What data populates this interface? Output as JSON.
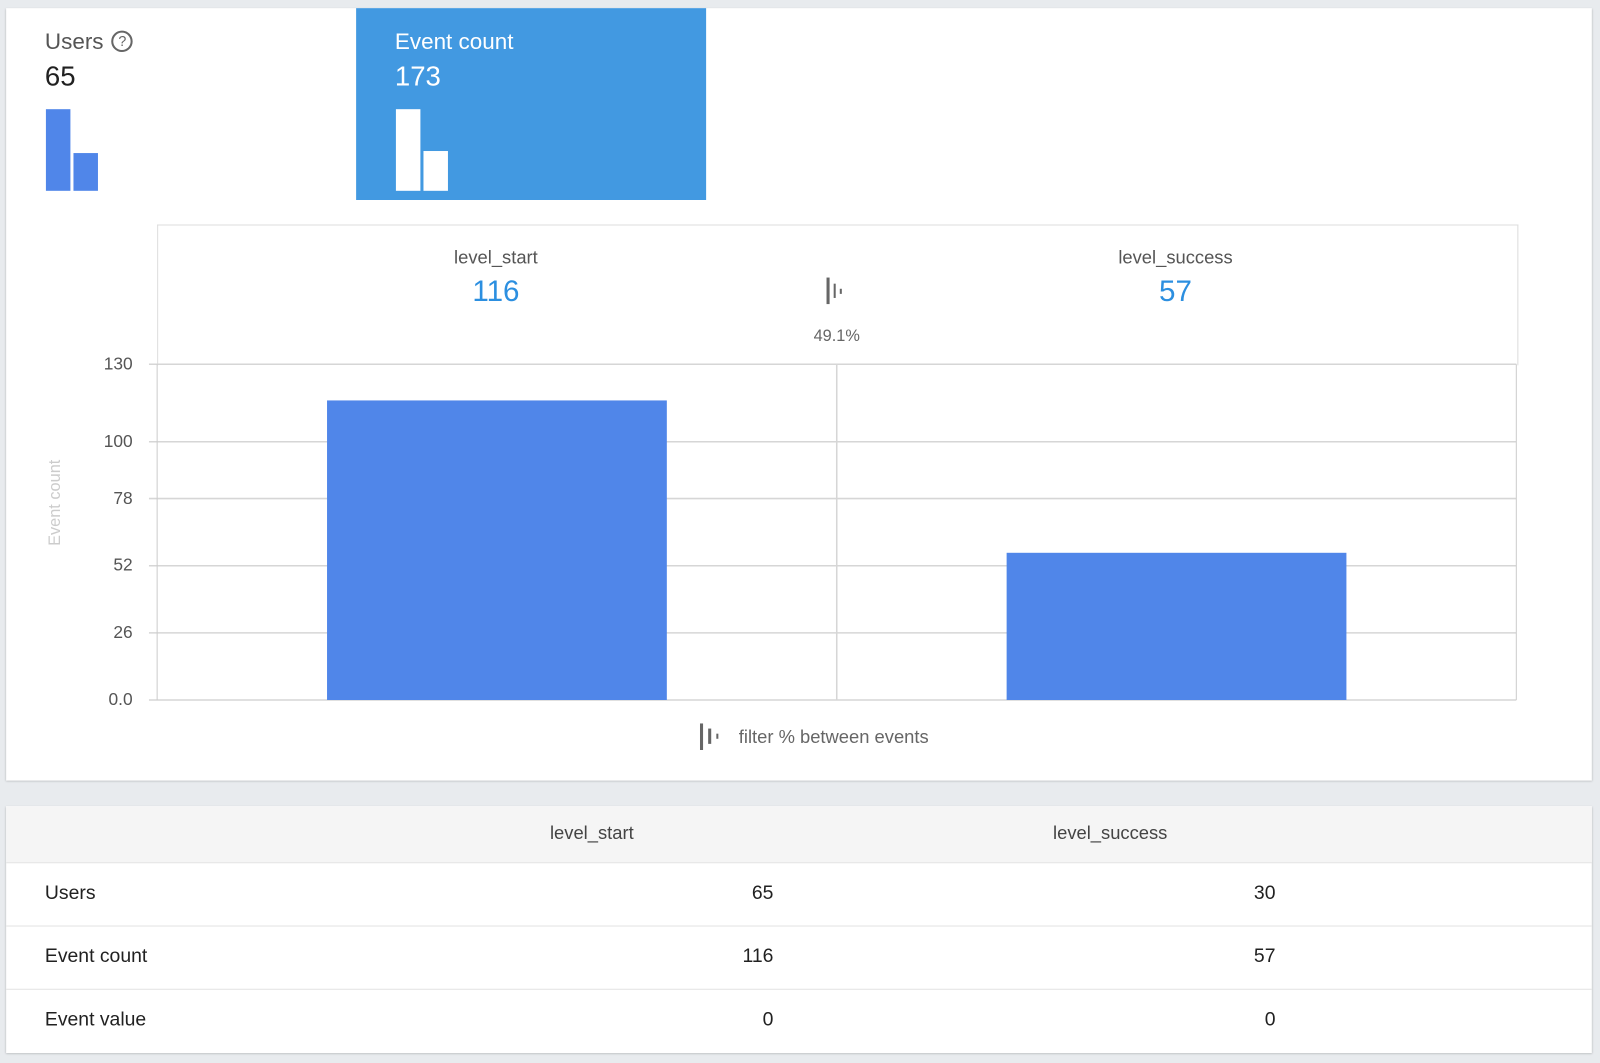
{
  "metrics": [
    {
      "label": "Users",
      "value": "65",
      "selected": false,
      "help_icon": "question-circle-icon",
      "mini_bars": [
        65,
        30
      ]
    },
    {
      "label": "Event count",
      "value": "173",
      "selected": true,
      "mini_bars": [
        116,
        57
      ]
    }
  ],
  "funnel": {
    "steps": [
      {
        "name": "level_start",
        "value": "116"
      },
      {
        "name": "level_success",
        "value": "57"
      }
    ],
    "conversion": "49.1%",
    "filter_label": "filter % between events",
    "filter_icon": "funnel-bars-icon"
  },
  "chart_data": {
    "type": "bar",
    "categories": [
      "level_start",
      "level_success"
    ],
    "values": [
      116,
      57
    ],
    "ylabel": "Event count",
    "yticks": [
      "0.0",
      "26",
      "52",
      "78",
      "100",
      "130"
    ],
    "ylim": [
      0,
      130
    ],
    "grid": true,
    "bar_color": "#5086e9"
  },
  "table": {
    "columns": [
      "",
      "level_start",
      "level_success"
    ],
    "rows": [
      {
        "label": "Users",
        "values": [
          "65",
          "30"
        ]
      },
      {
        "label": "Event count",
        "values": [
          "116",
          "57"
        ]
      },
      {
        "label": "Event value",
        "values": [
          "0",
          "0"
        ]
      }
    ]
  },
  "colors": {
    "accent": "#4299e1",
    "bar": "#5086e9",
    "value_text": "#2c8fe0"
  }
}
